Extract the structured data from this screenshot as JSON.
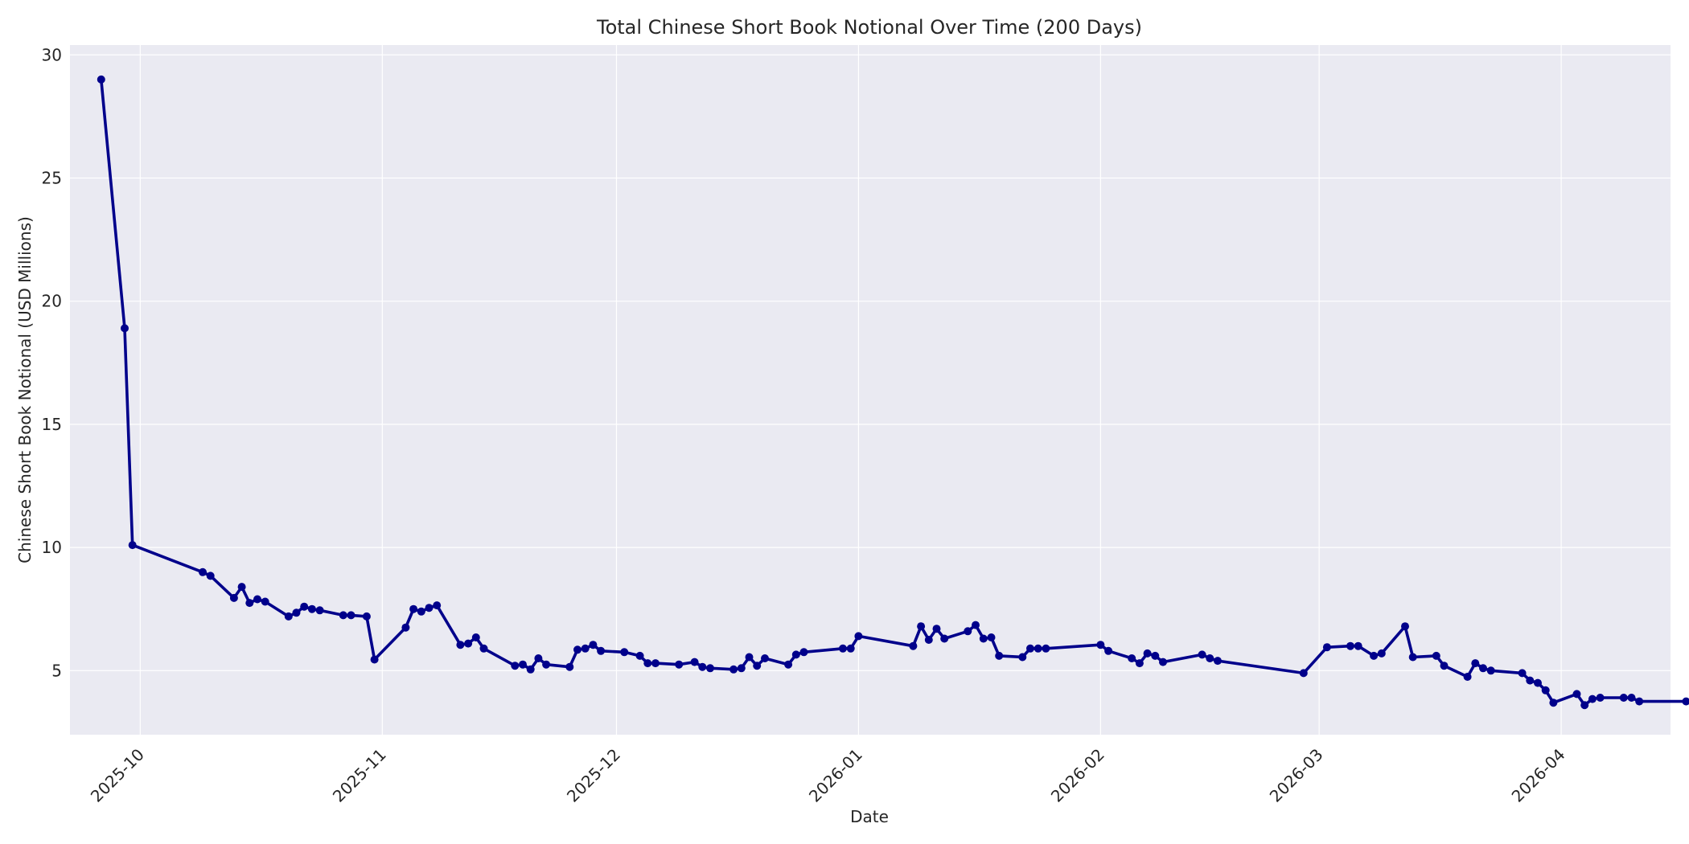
{
  "chart_data": {
    "type": "line",
    "title": "Total Chinese Short Book Notional Over Time (200 Days)",
    "xlabel": "Date",
    "ylabel": "Chinese Short Book Notional (USD Millions)",
    "x_ticks": [
      "2025-10",
      "2025-11",
      "2025-12",
      "2026-01",
      "2026-02",
      "2026-03",
      "2026-04"
    ],
    "y_ticks": [
      "5",
      "10",
      "15",
      "20",
      "25",
      "30"
    ],
    "ylim": [
      2.4,
      30.4
    ],
    "xlim": [
      "2025-09-22",
      "2026-04-15"
    ],
    "grid": true,
    "line_color": "#00008b",
    "plot_background": "#eaeaf2",
    "series": [
      {
        "x": [
          "2025-09-26",
          "2025-09-29",
          "2025-09-30",
          "2025-10-09",
          "2025-10-10",
          "2025-10-13",
          "2025-10-14",
          "2025-10-15",
          "2025-10-16",
          "2025-10-17",
          "2025-10-20",
          "2025-10-21",
          "2025-10-22",
          "2025-10-23",
          "2025-10-24",
          "2025-10-27",
          "2025-10-28",
          "2025-10-30",
          "2025-10-31",
          "2025-11-04",
          "2025-11-05",
          "2025-11-06",
          "2025-11-07",
          "2025-11-08",
          "2025-11-11",
          "2025-11-12",
          "2025-11-13",
          "2025-11-14",
          "2025-11-18",
          "2025-11-19",
          "2025-11-20",
          "2025-11-21",
          "2025-11-22",
          "2025-11-25",
          "2025-11-26",
          "2025-11-27",
          "2025-11-28",
          "2025-11-29",
          "2025-12-02",
          "2025-12-04",
          "2025-12-05",
          "2025-12-06",
          "2025-12-09",
          "2025-12-11",
          "2025-12-12",
          "2025-12-13",
          "2025-12-16",
          "2025-12-17",
          "2025-12-18",
          "2025-12-19",
          "2025-12-20",
          "2025-12-23",
          "2025-12-24",
          "2025-12-25",
          "2025-12-30",
          "2025-12-31",
          "2026-01-01",
          "2026-01-08",
          "2026-01-09",
          "2026-01-10",
          "2026-01-11",
          "2026-01-12",
          "2026-01-15",
          "2026-01-16",
          "2026-01-17",
          "2026-01-18",
          "2026-01-19",
          "2026-01-22",
          "2026-01-23",
          "2026-01-24",
          "2026-01-25",
          "2026-02-01",
          "2026-02-02",
          "2026-02-05",
          "2026-02-06",
          "2026-02-07",
          "2026-02-08",
          "2026-02-09",
          "2026-02-14",
          "2026-02-15",
          "2026-02-16",
          "2026-02-27",
          "2026-03-02",
          "2026-03-05",
          "2026-03-06",
          "2026-03-08",
          "2026-03-09",
          "2026-03-12",
          "2026-03-13",
          "2026-03-16",
          "2026-03-17",
          "2026-03-20",
          "2026-03-21",
          "2026-03-22",
          "2026-03-23",
          "2026-03-27",
          "2026-03-28",
          "2026-03-29",
          "2026-03-30",
          "2026-03-31",
          "2026-04-03",
          "2026-04-04",
          "2026-04-05",
          "2026-04-06",
          "2026-04-09",
          "2026-04-10",
          "2026-04-11",
          "2026-04-17",
          "2026-04-22"
        ],
        "y": [
          29.0,
          18.9,
          10.1,
          9.0,
          8.85,
          7.95,
          8.4,
          7.75,
          7.9,
          7.8,
          7.2,
          7.35,
          7.6,
          7.5,
          7.45,
          7.25,
          7.25,
          7.2,
          5.45,
          6.75,
          7.5,
          7.4,
          7.55,
          7.65,
          6.05,
          6.1,
          6.35,
          5.9,
          5.2,
          5.25,
          5.05,
          5.5,
          5.25,
          5.15,
          5.85,
          5.9,
          6.05,
          5.8,
          5.75,
          5.6,
          5.3,
          5.3,
          5.25,
          5.35,
          5.15,
          5.1,
          5.05,
          5.1,
          5.55,
          5.2,
          5.5,
          5.25,
          5.65,
          5.75,
          5.9,
          5.9,
          6.4,
          6.0,
          6.8,
          6.25,
          6.7,
          6.3,
          6.6,
          6.85,
          6.3,
          6.35,
          5.6,
          5.55,
          5.9,
          5.9,
          5.9,
          6.05,
          5.8,
          5.5,
          5.3,
          5.7,
          5.6,
          5.35,
          5.65,
          5.5,
          5.4,
          4.9,
          5.95,
          6.0,
          6.0,
          5.6,
          5.7,
          6.8,
          5.55,
          5.6,
          5.2,
          4.75,
          5.3,
          5.1,
          5.0,
          4.9,
          4.6,
          4.5,
          4.2,
          3.7,
          4.05,
          3.6,
          3.85,
          3.9,
          3.9,
          3.9,
          3.75,
          3.75,
          3.75
        ]
      }
    ]
  }
}
